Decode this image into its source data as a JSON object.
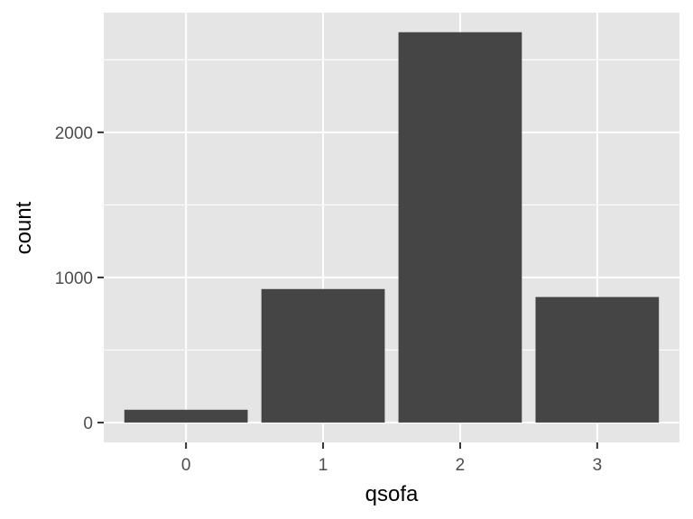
{
  "chart_data": {
    "type": "bar",
    "title": "",
    "xlabel": "qsofa",
    "ylabel": "count",
    "categories": [
      "0",
      "1",
      "2",
      "3"
    ],
    "values": [
      88,
      920,
      2690,
      865
    ],
    "ylim": [
      -137,
      2825
    ],
    "yticks": [
      0,
      1000,
      2000
    ],
    "ytick_labels": [
      "0",
      "1000",
      "2000"
    ],
    "grid": true,
    "legend": "none",
    "colors": {
      "panel": "#e5e5e5",
      "grid_major": "#ffffff",
      "bar": "#454545",
      "tick_mark": "#333333"
    }
  }
}
